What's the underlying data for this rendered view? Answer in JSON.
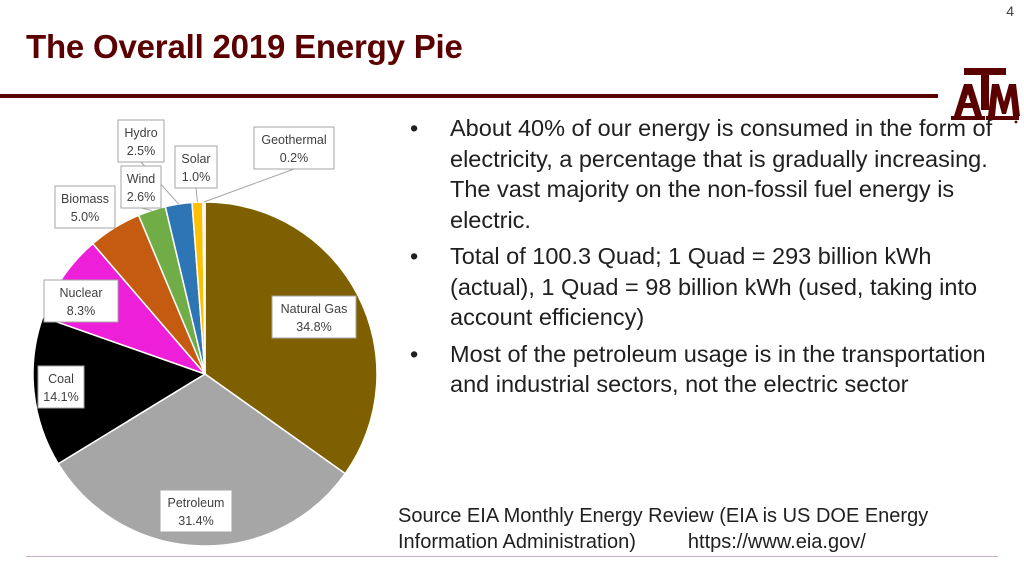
{
  "slide": {
    "number": "4",
    "title": "The Overall 2019 Energy Pie",
    "logo_text": "ATM"
  },
  "bullets": [
    "About 40% of our energy is consumed in the form of electricity, a percentage that is gradually increasing. The vast majority on the non-fossil fuel energy is electric.",
    "Total of 100.3 Quad; 1 Quad = 293 billion kWh (actual), 1 Quad = 98 billion kWh (used, taking into account efficiency)",
    "Most of the petroleum usage is in the transportation and industrial sectors, not the electric sector"
  ],
  "source": {
    "text_line1": "Source EIA Monthly Energy Review (EIA is US DOE Energy",
    "text_line2": "Information Administration)",
    "url": "https://www.eia.gov/"
  },
  "colors": {
    "maroon": "#5b0000",
    "leader_line": "#a6a6a6"
  },
  "chart_data": {
    "type": "pie",
    "title": "",
    "slices": [
      {
        "name": "Natural Gas",
        "value": 34.8,
        "label": "34.8%",
        "color": "#7f6000"
      },
      {
        "name": "Petroleum",
        "value": 31.4,
        "label": "31.4%",
        "color": "#a6a6a6"
      },
      {
        "name": "Coal",
        "value": 14.1,
        "label": "14.1%",
        "color": "#000000"
      },
      {
        "name": "Nuclear",
        "value": 8.3,
        "label": "8.3%",
        "color": "#ee1fd8"
      },
      {
        "name": "Biomass",
        "value": 5.0,
        "label": "5.0%",
        "color": "#c55a11"
      },
      {
        "name": "Wind",
        "value": 2.6,
        "label": "2.6%",
        "color": "#70ad47"
      },
      {
        "name": "Hydro",
        "value": 2.5,
        "label": "2.5%",
        "color": "#2e75b6"
      },
      {
        "name": "Solar",
        "value": 1.0,
        "label": "1.0%",
        "color": "#ffc000"
      },
      {
        "name": "Geothermal",
        "value": 0.2,
        "label": "0.2%",
        "color": "#ffc8d8"
      }
    ]
  }
}
